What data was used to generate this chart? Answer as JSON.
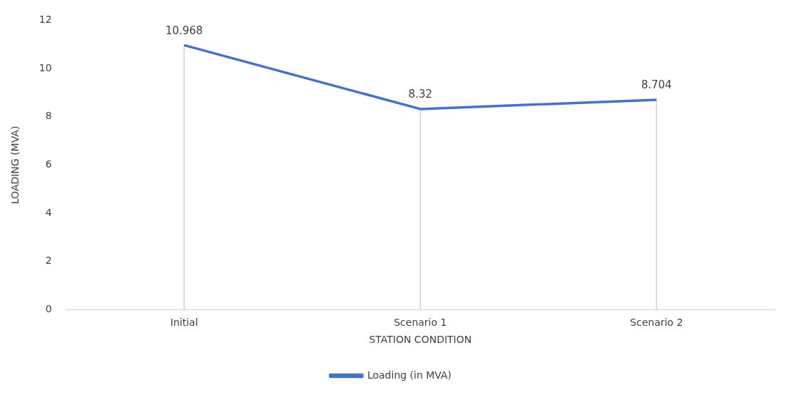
{
  "chart_data": {
    "type": "line",
    "xlabel": "STATION CONDITION",
    "ylabel": "LOADING (MVA)",
    "categories": [
      "Initial",
      "Scenario 1",
      "Scenario 2"
    ],
    "series": [
      {
        "name": "Loading (in MVA)",
        "color": "#4472c4",
        "values": [
          10.968,
          8.32,
          8.704
        ]
      }
    ],
    "ylim": [
      0,
      12
    ],
    "yticks": [
      0,
      2,
      4,
      6,
      8,
      10,
      12
    ],
    "grid": "x",
    "legend": "bottom",
    "marker": "none",
    "line_style": "solid",
    "data_labels": true
  }
}
